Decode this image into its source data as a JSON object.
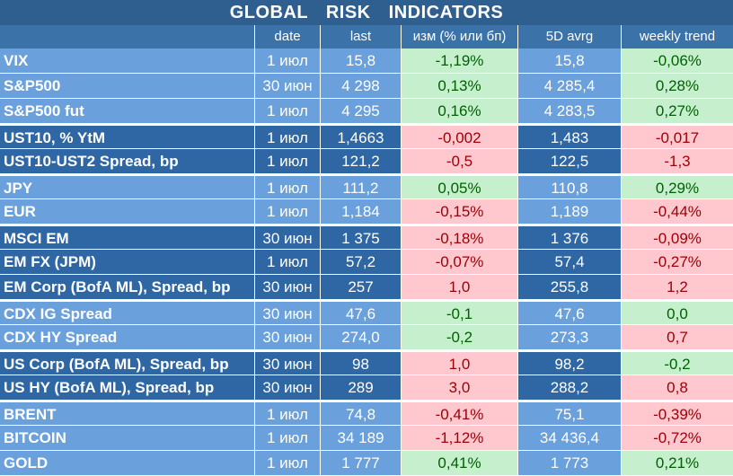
{
  "title": "GLOBAL RISK INDICATORS",
  "headers": [
    "",
    "date",
    "last",
    "изм (% или бп)",
    "5D avrg",
    "weekly trend"
  ],
  "colors": {
    "title_bg": "#2f5f8f",
    "light_blue": "#6aa0dc",
    "dark_blue": "#2f67a5",
    "positive_bg": "#c6efce",
    "positive_text": "#006100",
    "negative_bg": "#ffc7ce",
    "negative_text": "#9c0006"
  },
  "rows": [
    {
      "name": "VIX",
      "date": "1 июл",
      "last": "15,8",
      "change": "-1,19%",
      "change_tone": "pos",
      "avg": "15,8",
      "trend": "-0,06%",
      "trend_tone": "pos"
    },
    {
      "name": "S&P500",
      "date": "30 июн",
      "last": "4 298",
      "change": "0,13%",
      "change_tone": "pos",
      "avg": "4 285,4",
      "trend": "0,28%",
      "trend_tone": "pos"
    },
    {
      "name": "S&P500 fut",
      "date": "1 июл",
      "last": "4 295",
      "change": "0,16%",
      "change_tone": "pos",
      "avg": "4 283,5",
      "trend": "0,27%",
      "trend_tone": "pos"
    },
    {
      "name": "UST10, % YtM",
      "date": "1 июл",
      "last": "1,4663",
      "change": "-0,002",
      "change_tone": "neg",
      "avg": "1,483",
      "trend": "-0,017",
      "trend_tone": "neg"
    },
    {
      "name": "UST10-UST2 Spread, bp",
      "date": "1 июл",
      "last": "121,2",
      "change": "-0,5",
      "change_tone": "neg",
      "avg": "122,5",
      "trend": "-1,3",
      "trend_tone": "neg"
    },
    {
      "name": "JPY",
      "date": "1 июл",
      "last": "111,2",
      "change": "0,05%",
      "change_tone": "pos",
      "avg": "110,8",
      "trend": "0,29%",
      "trend_tone": "pos"
    },
    {
      "name": "EUR",
      "date": "1 июл",
      "last": "1,184",
      "change": "-0,15%",
      "change_tone": "neg",
      "avg": "1,189",
      "trend": "-0,44%",
      "trend_tone": "neg"
    },
    {
      "name": "MSCI EM",
      "date": "30 июн",
      "last": "1 375",
      "change": "-0,18%",
      "change_tone": "neg",
      "avg": "1 376",
      "trend": "-0,09%",
      "trend_tone": "neg"
    },
    {
      "name": "EM FX (JPM)",
      "date": "1 июл",
      "last": "57,2",
      "change": "-0,07%",
      "change_tone": "neg",
      "avg": "57,4",
      "trend": "-0,27%",
      "trend_tone": "neg"
    },
    {
      "name": "EM Corp (BofA ML), Spread, bp",
      "date": "30 июн",
      "last": "257",
      "change": "1,0",
      "change_tone": "neg",
      "avg": "255,8",
      "trend": "1,2",
      "trend_tone": "neg"
    },
    {
      "name": "CDX IG Spread",
      "date": "30 июн",
      "last": "47,6",
      "change": "-0,1",
      "change_tone": "pos",
      "avg": "47,6",
      "trend": "0,0",
      "trend_tone": "pos"
    },
    {
      "name": "CDX HY Spread",
      "date": "30 июн",
      "last": "274,0",
      "change": "-0,2",
      "change_tone": "pos",
      "avg": "273,3",
      "trend": "0,7",
      "trend_tone": "neg"
    },
    {
      "name": "US Corp (BofA ML), Spread, bp",
      "date": "30 июн",
      "last": "98",
      "change": "1,0",
      "change_tone": "neg",
      "avg": "98,2",
      "trend": "-0,2",
      "trend_tone": "pos"
    },
    {
      "name": "US HY (BofA ML), Spread, bp",
      "date": "30 июн",
      "last": "289",
      "change": "3,0",
      "change_tone": "neg",
      "avg": "288,2",
      "trend": "0,8",
      "trend_tone": "neg"
    },
    {
      "name": "BRENT",
      "date": "1 июл",
      "last": "74,8",
      "change": "-0,41%",
      "change_tone": "neg",
      "avg": "75,1",
      "trend": "-0,39%",
      "trend_tone": "neg"
    },
    {
      "name": "BITCOIN",
      "date": "1 июл",
      "last": "34 189",
      "change": "-1,12%",
      "change_tone": "neg",
      "avg": "34 436,4",
      "trend": "-0,72%",
      "trend_tone": "neg"
    },
    {
      "name": "GOLD",
      "date": "1 июл",
      "last": "1 777",
      "change": "0,41%",
      "change_tone": "pos",
      "avg": "1 773",
      "trend": "0,21%",
      "trend_tone": "pos"
    }
  ]
}
